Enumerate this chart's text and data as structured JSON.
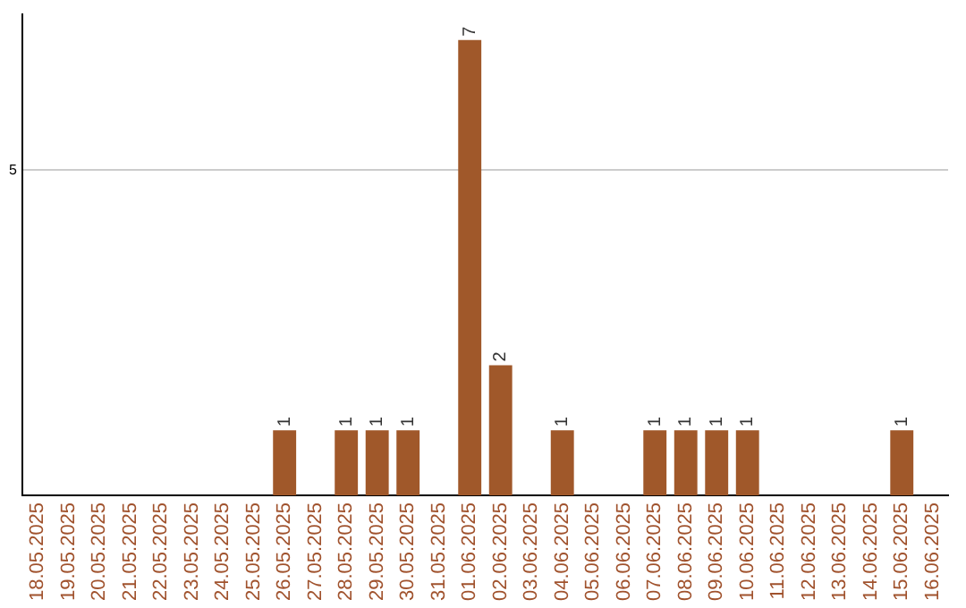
{
  "chart_data": {
    "type": "bar",
    "categories": [
      "18.05.2025",
      "19.05.2025",
      "20.05.2025",
      "21.05.2025",
      "22.05.2025",
      "23.05.2025",
      "24.05.2025",
      "25.05.2025",
      "26.05.2025",
      "27.05.2025",
      "28.05.2025",
      "29.05.2025",
      "30.05.2025",
      "31.05.2025",
      "01.06.2025",
      "02.06.2025",
      "03.06.2025",
      "04.06.2025",
      "05.06.2025",
      "06.06.2025",
      "07.06.2025",
      "08.06.2025",
      "09.06.2025",
      "10.06.2025",
      "11.06.2025",
      "12.06.2025",
      "13.06.2025",
      "14.06.2025",
      "15.06.2025",
      "16.06.2025"
    ],
    "values": [
      0,
      0,
      0,
      0,
      0,
      0,
      0,
      0,
      1,
      0,
      1,
      1,
      1,
      0,
      7,
      2,
      0,
      1,
      0,
      0,
      1,
      1,
      1,
      1,
      0,
      0,
      0,
      0,
      1,
      0
    ],
    "color": "#a0582a",
    "value_labels": [
      null,
      null,
      null,
      null,
      null,
      null,
      null,
      null,
      "1",
      null,
      "1",
      "1",
      "1",
      null,
      "7",
      "2",
      null,
      "1",
      null,
      null,
      "1",
      "1",
      "1",
      "1",
      null,
      null,
      null,
      null,
      "1",
      null
    ],
    "ylim": [
      0,
      7.4
    ],
    "yticks": [
      5
    ],
    "grid": "y",
    "legend": false
  }
}
